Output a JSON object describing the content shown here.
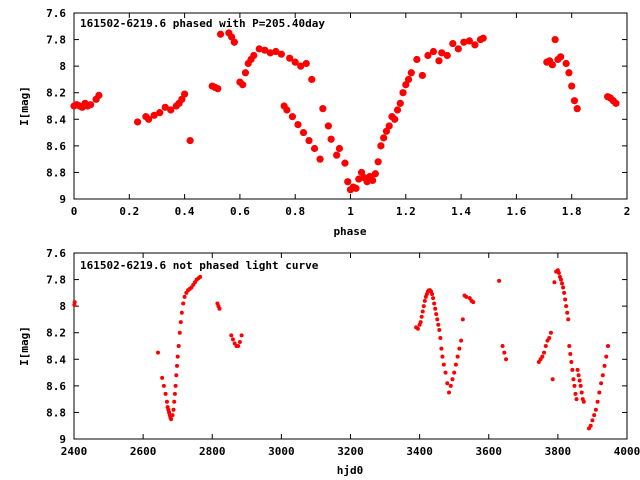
{
  "chart_data": [
    {
      "type": "scatter",
      "title": "161502-6219.6 phased with P=205.40day",
      "xlabel": "phase",
      "ylabel": "I[mag]",
      "xlim": [
        0,
        2
      ],
      "ylim": [
        9,
        7.6
      ],
      "y_inverted": true,
      "xticks": [
        0,
        0.2,
        0.4,
        0.6,
        0.8,
        1,
        1.2,
        1.4,
        1.6,
        1.8,
        2
      ],
      "xtick_labels": [
        "0",
        "0.2",
        "0.4",
        "0.6",
        "0.8",
        "1",
        "1.2",
        "1.4",
        "1.6",
        "1.8",
        "2"
      ],
      "yticks": [
        7.6,
        7.8,
        8,
        8.2,
        8.4,
        8.6,
        8.8,
        9
      ],
      "ytick_labels": [
        "7.6",
        "7.8",
        "8",
        "8.2",
        "8.4",
        "8.6",
        "8.8",
        "9"
      ],
      "grid": false,
      "marker_color": "#ff0000",
      "marker_size": "large",
      "series": [
        {
          "x": [
            0.0,
            0.01,
            0.02,
            0.03,
            0.04,
            0.05,
            0.06,
            0.08,
            0.09,
            0.23,
            0.26,
            0.27,
            0.29,
            0.31,
            0.33,
            0.35,
            0.37,
            0.38,
            0.39,
            0.4,
            0.42,
            0.5,
            0.51,
            0.52,
            0.53,
            0.56,
            0.57,
            0.58,
            0.6,
            0.61,
            0.62,
            0.63,
            0.64,
            0.65,
            0.67,
            0.69,
            0.71,
            0.73,
            0.75,
            0.76,
            0.77,
            0.78,
            0.79,
            0.8,
            0.81,
            0.82,
            0.83,
            0.84,
            0.85,
            0.86,
            0.87,
            0.89,
            0.9,
            0.92,
            0.93,
            0.95,
            0.96,
            0.98,
            0.99,
            1.0,
            1.01,
            1.02,
            1.03,
            1.04,
            1.05,
            1.06,
            1.07,
            1.08,
            1.09,
            1.1,
            1.11,
            1.12,
            1.13,
            1.14,
            1.15,
            1.16,
            1.17,
            1.18,
            1.19,
            1.2,
            1.21,
            1.22,
            1.24,
            1.26,
            1.28,
            1.3,
            1.32,
            1.33,
            1.35,
            1.37,
            1.39,
            1.41,
            1.43,
            1.45,
            1.47,
            1.48,
            1.71,
            1.72,
            1.73,
            1.74,
            1.75,
            1.76,
            1.78,
            1.79,
            1.8,
            1.81,
            1.82,
            1.93,
            1.94,
            1.95,
            1.96
          ],
          "y": [
            8.3,
            8.29,
            8.3,
            8.31,
            8.28,
            8.3,
            8.29,
            8.25,
            8.22,
            8.42,
            8.38,
            8.4,
            8.37,
            8.35,
            8.31,
            8.33,
            8.3,
            8.28,
            8.25,
            8.21,
            8.56,
            8.15,
            8.16,
            8.17,
            7.76,
            7.75,
            7.78,
            7.82,
            8.12,
            8.14,
            8.05,
            7.98,
            7.95,
            7.92,
            7.87,
            7.88,
            7.9,
            7.89,
            7.91,
            8.3,
            8.33,
            7.94,
            8.38,
            7.97,
            8.44,
            8.0,
            8.5,
            7.98,
            8.56,
            8.1,
            8.62,
            8.7,
            8.32,
            8.45,
            8.55,
            8.67,
            8.62,
            8.73,
            8.87,
            8.93,
            8.91,
            8.92,
            8.85,
            8.8,
            8.84,
            8.87,
            8.83,
            8.86,
            8.81,
            8.72,
            8.6,
            8.54,
            8.49,
            8.45,
            8.38,
            8.4,
            8.33,
            8.28,
            8.2,
            8.14,
            8.1,
            8.05,
            7.95,
            8.07,
            7.92,
            7.89,
            7.96,
            7.9,
            7.92,
            7.83,
            7.87,
            7.82,
            7.81,
            7.84,
            7.8,
            7.79,
            7.97,
            7.96,
            7.99,
            7.8,
            7.95,
            7.93,
            7.98,
            8.05,
            8.15,
            8.26,
            8.32,
            8.23,
            8.24,
            8.26,
            8.28
          ]
        }
      ]
    },
    {
      "type": "scatter",
      "title": "161502-6219.6 not phased light curve",
      "xlabel": "hjd0",
      "ylabel": "I[mag]",
      "xlim": [
        2400,
        4000
      ],
      "ylim": [
        9,
        7.6
      ],
      "y_inverted": true,
      "xticks": [
        2400,
        2600,
        2800,
        3000,
        3200,
        3400,
        3600,
        3800,
        4000
      ],
      "xtick_labels": [
        "2400",
        "2600",
        "2800",
        "3000",
        "3200",
        "3400",
        "3600",
        "3800",
        "4000"
      ],
      "yticks": [
        7.6,
        7.8,
        8,
        8.2,
        8.4,
        8.6,
        8.8,
        9
      ],
      "ytick_labels": [
        "7.6",
        "7.8",
        "8",
        "8.2",
        "8.4",
        "8.6",
        "8.8",
        "9"
      ],
      "grid": false,
      "marker_color": "#ff0000",
      "marker_size": "small",
      "series": [
        {
          "x": [
            2401,
            2402,
            2643,
            2655,
            2660,
            2665,
            2669,
            2671,
            2673,
            2675,
            2677,
            2679,
            2681,
            2685,
            2688,
            2690,
            2692,
            2694,
            2696,
            2698,
            2700,
            2703,
            2706,
            2709,
            2712,
            2716,
            2720,
            2725,
            2730,
            2735,
            2740,
            2745,
            2750,
            2755,
            2760,
            2765,
            2815,
            2818,
            2821,
            2855,
            2860,
            2865,
            2870,
            2875,
            2880,
            2885,
            3390,
            3395,
            3400,
            3403,
            3406,
            3409,
            3412,
            3415,
            3418,
            3421,
            3424,
            3427,
            3430,
            3433,
            3436,
            3439,
            3442,
            3445,
            3448,
            3451,
            3454,
            3457,
            3460,
            3463,
            3466,
            3470,
            3475,
            3480,
            3485,
            3490,
            3495,
            3500,
            3505,
            3510,
            3515,
            3520,
            3525,
            3530,
            3535,
            3545,
            3550,
            3555,
            3630,
            3640,
            3645,
            3650,
            3745,
            3750,
            3755,
            3760,
            3765,
            3770,
            3775,
            3780,
            3785,
            3790,
            3795,
            3800,
            3803,
            3806,
            3809,
            3812,
            3815,
            3818,
            3821,
            3824,
            3827,
            3830,
            3833,
            3836,
            3839,
            3842,
            3845,
            3848,
            3851,
            3854,
            3857,
            3860,
            3863,
            3866,
            3869,
            3872,
            3875,
            3890,
            3895,
            3900,
            3905,
            3910,
            3915,
            3920,
            3925,
            3930,
            3935,
            3940,
            3945
          ],
          "y": [
            7.99,
            7.97,
            8.35,
            8.54,
            8.6,
            8.66,
            8.72,
            8.76,
            8.78,
            8.8,
            8.82,
            8.84,
            8.85,
            8.82,
            8.78,
            8.72,
            8.66,
            8.6,
            8.52,
            8.45,
            8.38,
            8.3,
            8.2,
            8.12,
            8.05,
            7.98,
            7.93,
            7.9,
            7.88,
            7.87,
            7.86,
            7.84,
            7.82,
            7.8,
            7.79,
            7.78,
            7.98,
            8.0,
            8.02,
            8.22,
            8.25,
            8.28,
            8.3,
            8.3,
            8.27,
            8.22,
            8.16,
            8.17,
            8.14,
            8.12,
            8.08,
            8.04,
            8.0,
            7.96,
            7.93,
            7.91,
            7.89,
            7.88,
            7.88,
            7.89,
            7.91,
            7.94,
            7.98,
            8.02,
            8.06,
            8.1,
            8.14,
            8.18,
            8.24,
            8.32,
            8.38,
            8.44,
            8.5,
            8.58,
            8.65,
            8.6,
            8.55,
            8.5,
            8.44,
            8.38,
            8.32,
            8.26,
            8.1,
            7.92,
            7.93,
            7.94,
            7.96,
            7.97,
            7.81,
            8.3,
            8.35,
            8.4,
            8.42,
            8.4,
            8.38,
            8.35,
            8.3,
            8.26,
            8.24,
            8.2,
            8.55,
            7.82,
            7.74,
            7.73,
            7.75,
            7.78,
            7.8,
            7.83,
            7.86,
            7.9,
            7.95,
            8.0,
            8.05,
            8.1,
            8.3,
            8.36,
            8.42,
            8.48,
            8.55,
            8.6,
            8.66,
            8.7,
            8.48,
            8.52,
            8.56,
            8.6,
            8.65,
            8.7,
            8.72,
            8.92,
            8.9,
            8.86,
            8.82,
            8.78,
            8.72,
            8.65,
            8.58,
            8.52,
            8.45,
            8.38,
            8.3
          ]
        }
      ]
    }
  ]
}
